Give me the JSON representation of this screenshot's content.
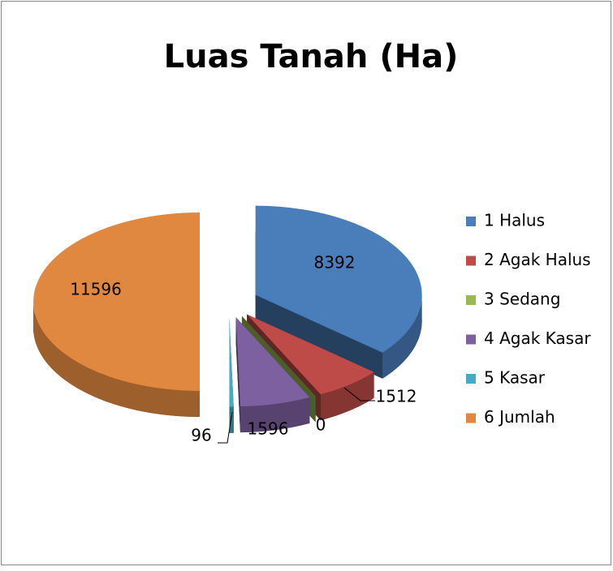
{
  "chart_data": {
    "type": "pie",
    "title": "Luas Tanah (Ha)",
    "categories": [
      "1 Halus",
      "2 Agak Halus",
      "3 Sedang",
      "4 Agak Kasar",
      "5 Kasar",
      "6 Jumlah"
    ],
    "values": [
      8392,
      1512,
      0,
      1596,
      96,
      11596
    ],
    "colors": [
      "#4a7ebb",
      "#be4b48",
      "#98b954",
      "#7d60a0",
      "#46aac5",
      "#e0883f"
    ],
    "legend": "right"
  }
}
